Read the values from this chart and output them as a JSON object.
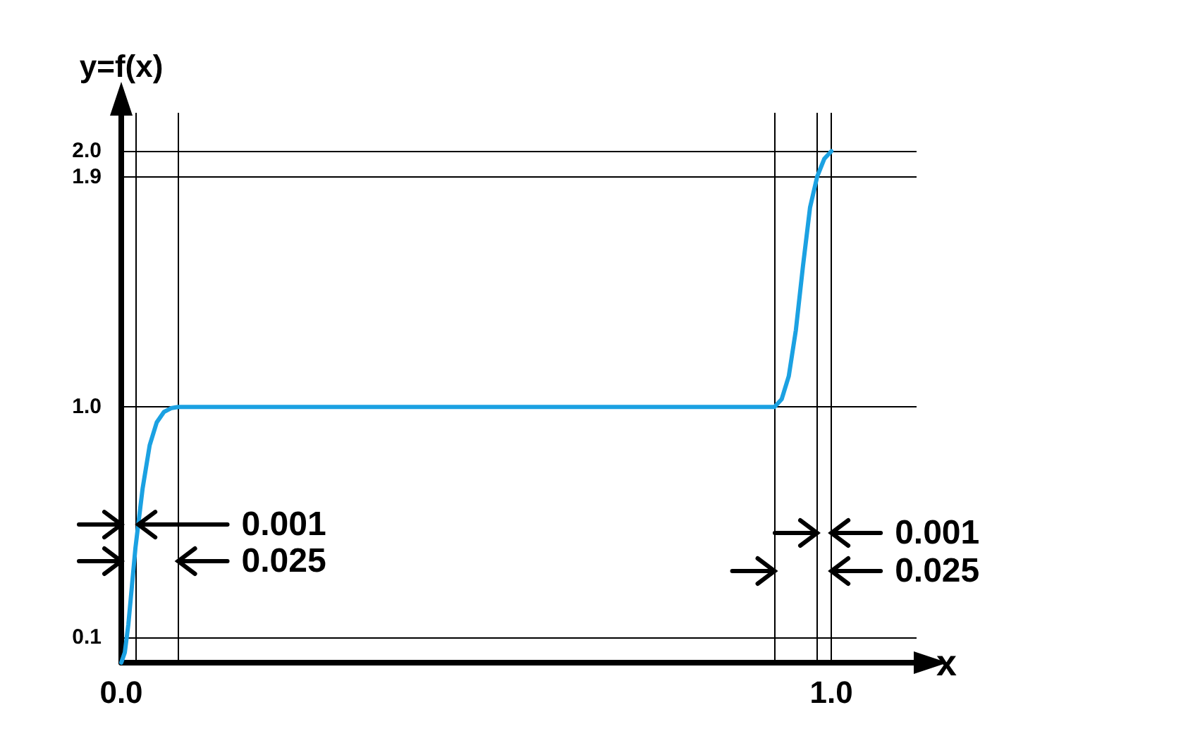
{
  "chart_data": {
    "type": "line",
    "xlabel": "x",
    "ylabel": "y=f(x)",
    "x": [
      0,
      0.005,
      0.01,
      0.015,
      0.02,
      0.03,
      0.04,
      0.05,
      0.06,
      0.07,
      0.08,
      0.92,
      0.93,
      0.94,
      0.95,
      0.96,
      0.97,
      0.98,
      0.99,
      1.0
    ],
    "series": [
      {
        "color": "#1ba1e2",
        "values": [
          0,
          0.04,
          0.15,
          0.3,
          0.45,
          0.68,
          0.85,
          0.94,
          0.98,
          0.995,
          1.0,
          1.0,
          1.03,
          1.12,
          1.3,
          1.55,
          1.78,
          1.9,
          1.97,
          2.0
        ]
      }
    ],
    "xlim": [
      0,
      1.12
    ],
    "ylim": [
      0,
      2.15
    ],
    "xticks": [
      {
        "value": 0,
        "label": "0.0"
      },
      {
        "value": 0.02,
        "label": null
      },
      {
        "value": 0.08,
        "label": null
      },
      {
        "value": 0.92,
        "label": null
      },
      {
        "value": 0.98,
        "label": null
      },
      {
        "value": 1.0,
        "label": "1.0"
      }
    ],
    "yticks": [
      0.1,
      {
        "value": 1.0,
        "label": "1.0"
      },
      1.9,
      {
        "value": 2.0,
        "label": "2.0"
      }
    ],
    "annotations": [
      {
        "text": "0.001",
        "x": 0.024,
        "y": 0.54
      },
      "0.025",
      "0.001",
      "0.025"
    ],
    "grid": true,
    "marker": "none",
    "line_style": "solid"
  }
}
